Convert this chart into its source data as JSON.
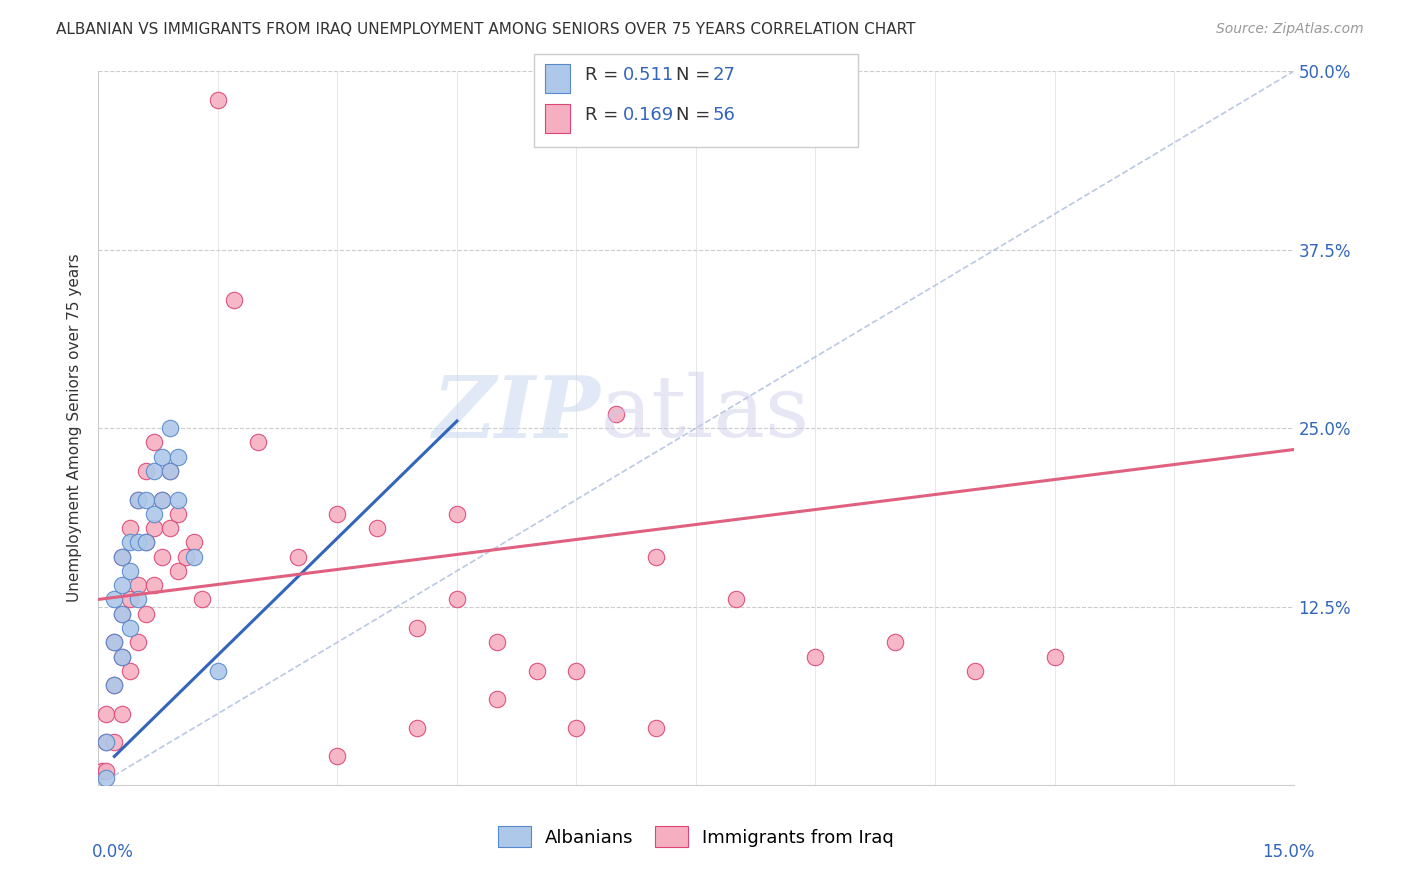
{
  "title": "ALBANIAN VS IMMIGRANTS FROM IRAQ UNEMPLOYMENT AMONG SENIORS OVER 75 YEARS CORRELATION CHART",
  "source": "Source: ZipAtlas.com",
  "ylabel": "Unemployment Among Seniors over 75 years",
  "xlim": [
    0,
    0.15
  ],
  "ylim": [
    0,
    0.5
  ],
  "blue_R": "0.511",
  "blue_N": "27",
  "pink_R": "0.169",
  "pink_N": "56",
  "blue_color": "#adc8e8",
  "pink_color": "#f5afc0",
  "blue_line_color": "#3366bb",
  "pink_line_color": "#e06080",
  "blue_edge_color": "#5588cc",
  "pink_edge_color": "#dd4477",
  "legend_label_blue": "Albanians",
  "legend_label_pink": "Immigrants from Iraq",
  "blue_scatter_x": [
    0.001,
    0.001,
    0.002,
    0.002,
    0.002,
    0.003,
    0.003,
    0.003,
    0.003,
    0.004,
    0.004,
    0.004,
    0.005,
    0.005,
    0.005,
    0.006,
    0.006,
    0.007,
    0.007,
    0.008,
    0.008,
    0.009,
    0.009,
    0.01,
    0.01,
    0.012,
    0.015
  ],
  "blue_scatter_y": [
    0.005,
    0.03,
    0.07,
    0.1,
    0.13,
    0.09,
    0.12,
    0.14,
    0.16,
    0.11,
    0.15,
    0.17,
    0.13,
    0.17,
    0.2,
    0.17,
    0.2,
    0.19,
    0.22,
    0.2,
    0.23,
    0.22,
    0.25,
    0.2,
    0.23,
    0.16,
    0.08
  ],
  "pink_scatter_x": [
    0.0005,
    0.001,
    0.001,
    0.001,
    0.002,
    0.002,
    0.002,
    0.003,
    0.003,
    0.003,
    0.003,
    0.004,
    0.004,
    0.004,
    0.005,
    0.005,
    0.005,
    0.006,
    0.006,
    0.006,
    0.007,
    0.007,
    0.007,
    0.008,
    0.008,
    0.009,
    0.009,
    0.01,
    0.01,
    0.011,
    0.012,
    0.013,
    0.015,
    0.017,
    0.02,
    0.025,
    0.03,
    0.035,
    0.04,
    0.045,
    0.05,
    0.055,
    0.06,
    0.065,
    0.07,
    0.08,
    0.09,
    0.1,
    0.11,
    0.12,
    0.03,
    0.04,
    0.045,
    0.05,
    0.06,
    0.07
  ],
  "pink_scatter_y": [
    0.01,
    0.01,
    0.03,
    0.05,
    0.03,
    0.07,
    0.1,
    0.05,
    0.09,
    0.12,
    0.16,
    0.08,
    0.13,
    0.18,
    0.1,
    0.14,
    0.2,
    0.12,
    0.17,
    0.22,
    0.14,
    0.18,
    0.24,
    0.16,
    0.2,
    0.18,
    0.22,
    0.15,
    0.19,
    0.16,
    0.17,
    0.13,
    0.48,
    0.34,
    0.24,
    0.16,
    0.19,
    0.18,
    0.11,
    0.13,
    0.1,
    0.08,
    0.08,
    0.26,
    0.16,
    0.13,
    0.09,
    0.1,
    0.08,
    0.09,
    0.02,
    0.04,
    0.19,
    0.06,
    0.04,
    0.04
  ],
  "blue_line_x": [
    0.002,
    0.045
  ],
  "blue_line_y": [
    0.02,
    0.255
  ],
  "pink_line_x": [
    0.0,
    0.15
  ],
  "pink_line_y": [
    0.13,
    0.235
  ],
  "diag_line_x": [
    0.0,
    0.15
  ],
  "diag_line_y": [
    0.0,
    0.5
  ],
  "yticks": [
    0,
    0.125,
    0.25,
    0.375,
    0.5
  ],
  "ytick_labels": [
    "",
    "12.5%",
    "25.0%",
    "37.5%",
    "50.0%"
  ],
  "xtick_positions": [
    0.0,
    0.015,
    0.03,
    0.045,
    0.06,
    0.075,
    0.09,
    0.105,
    0.12,
    0.135,
    0.15
  ],
  "axis_label_color": "#3366bb",
  "text_color": "#333333",
  "source_color": "#999999",
  "title_fontsize": 11,
  "source_fontsize": 10,
  "axis_tick_fontsize": 12,
  "ylabel_fontsize": 11,
  "legend_fontsize": 13
}
